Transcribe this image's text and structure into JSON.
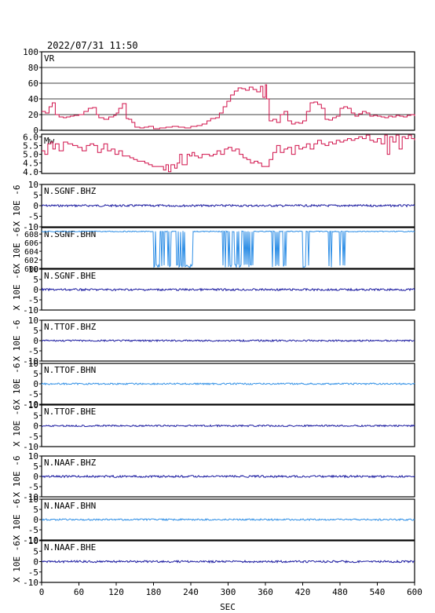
{
  "header": {
    "timestamp": "2022/07/31 11:50"
  },
  "xaxis": {
    "label": "SEC",
    "ticks": [
      0,
      60,
      120,
      180,
      240,
      300,
      360,
      420,
      480,
      540,
      600
    ],
    "range": [
      0,
      600
    ]
  },
  "colors": {
    "frame": "#000000",
    "vr": "#d0104a",
    "mw": "#d0104a",
    "bhz": "#1a1aa0",
    "bhn": "#2f8fe6",
    "bhe": "#1a1aa0",
    "grid": "#000000"
  },
  "chart_data": [
    {
      "type": "line",
      "panel": "VR",
      "label": "VR",
      "ylim": [
        0,
        100
      ],
      "yticks": [
        "0",
        "20",
        "40",
        "60",
        "80",
        "100"
      ],
      "grid": true,
      "series": [
        {
          "x": [
            0,
            6,
            12,
            17,
            22,
            28,
            35,
            40,
            46,
            52,
            60,
            68,
            75,
            82,
            88,
            92,
            100,
            108,
            116,
            120,
            124,
            130,
            136,
            140,
            145,
            150,
            158,
            165,
            172,
            180,
            190,
            200,
            210,
            220,
            230,
            240,
            250,
            258,
            266,
            272,
            280,
            286,
            292,
            298,
            304,
            310,
            316,
            322,
            328,
            334,
            340,
            346,
            352,
            356,
            360,
            362,
            366,
            372,
            378,
            384,
            390,
            396,
            402,
            408,
            414,
            420,
            426,
            432,
            438,
            444,
            450,
            456,
            462,
            468,
            474,
            480,
            486,
            492,
            498,
            504,
            510,
            516,
            522,
            528,
            534,
            540,
            546,
            552,
            558,
            564,
            570,
            576,
            582,
            588,
            594,
            600
          ],
          "y": [
            24,
            22,
            30,
            35,
            20,
            17,
            16,
            17,
            18,
            19,
            20,
            24,
            28,
            29,
            20,
            16,
            14,
            17,
            19,
            22,
            28,
            34,
            15,
            14,
            10,
            4,
            3,
            4,
            5,
            2,
            3,
            4,
            5,
            4,
            3,
            5,
            6,
            8,
            12,
            15,
            16,
            22,
            30,
            37,
            45,
            50,
            54,
            53,
            51,
            55,
            52,
            49,
            56,
            42,
            58,
            40,
            12,
            14,
            10,
            20,
            24,
            12,
            8,
            10,
            9,
            12,
            24,
            35,
            36,
            33,
            28,
            14,
            13,
            16,
            18,
            28,
            30,
            28,
            22,
            18,
            21,
            24,
            22,
            18,
            19,
            18,
            17,
            16,
            18,
            17,
            19,
            18,
            17,
            19,
            20,
            18
          ]
        }
      ]
    },
    {
      "type": "line",
      "panel": "Mw",
      "label": "Mw",
      "ylim": [
        3.9,
        6.15
      ],
      "yticks": [
        "4.0",
        "4.5",
        "5.0",
        "5.5",
        "6.0"
      ],
      "series": [
        {
          "x": [
            0,
            5,
            10,
            15,
            18,
            22,
            28,
            35,
            42,
            50,
            58,
            65,
            72,
            78,
            84,
            90,
            96,
            100,
            106,
            112,
            118,
            124,
            130,
            136,
            142,
            148,
            154,
            160,
            166,
            172,
            178,
            184,
            190,
            196,
            200,
            204,
            208,
            214,
            218,
            222,
            226,
            230,
            234,
            238,
            242,
            246,
            252,
            258,
            264,
            270,
            276,
            282,
            288,
            294,
            300,
            306,
            312,
            318,
            324,
            330,
            336,
            342,
            348,
            354,
            360,
            366,
            372,
            378,
            384,
            390,
            396,
            402,
            408,
            414,
            420,
            426,
            432,
            438,
            444,
            450,
            456,
            462,
            468,
            474,
            480,
            486,
            492,
            498,
            504,
            510,
            516,
            522,
            528,
            534,
            540,
            546,
            552,
            556,
            560,
            565,
            570,
            575,
            580,
            585,
            590,
            595,
            600
          ],
          "y": [
            5.2,
            5.0,
            5.6,
            5.7,
            5.3,
            5.6,
            5.2,
            5.7,
            5.6,
            5.5,
            5.4,
            5.2,
            5.5,
            5.6,
            5.5,
            5.1,
            5.3,
            5.6,
            5.2,
            5.3,
            5.0,
            5.2,
            4.9,
            4.9,
            4.8,
            4.7,
            4.6,
            4.6,
            4.5,
            4.4,
            4.3,
            4.3,
            4.3,
            4.1,
            4.4,
            4.0,
            4.4,
            4.2,
            4.5,
            5.0,
            4.4,
            4.4,
            5.0,
            4.9,
            5.1,
            4.9,
            4.8,
            5.0,
            5.0,
            4.9,
            5.0,
            5.2,
            5.0,
            5.3,
            5.4,
            5.2,
            5.3,
            5.0,
            4.8,
            4.7,
            4.5,
            4.6,
            4.5,
            4.3,
            4.3,
            4.7,
            5.1,
            5.5,
            5.1,
            5.3,
            5.4,
            5.0,
            5.5,
            5.3,
            5.4,
            5.6,
            5.3,
            5.6,
            5.8,
            5.6,
            5.5,
            5.7,
            5.6,
            5.8,
            5.7,
            5.8,
            5.9,
            5.8,
            5.9,
            6.0,
            5.9,
            6.1,
            5.8,
            5.7,
            5.9,
            5.6,
            6.1,
            5.0,
            6.0,
            5.7,
            6.1,
            5.3,
            6.0,
            5.9,
            6.1,
            5.9,
            5.8
          ]
        }
      ]
    },
    {
      "type": "line",
      "panel": "N.SGNF.BHZ",
      "label": "N.SGNF.BHZ",
      "ylim": [
        -10,
        10
      ],
      "yticks": [
        "-10",
        "-5",
        "0",
        "5",
        "10"
      ],
      "ylabel": "X 10E -6",
      "series": [
        {
          "name": "N.SGNF.BHZ",
          "baseline": 0,
          "amplitude": 0.5
        }
      ]
    },
    {
      "type": "line",
      "panel": "N.SGNF.BHN",
      "label": "N.SGNF.BHN",
      "ylim": [
        600,
        609.5
      ],
      "yticks": [
        "600",
        "602",
        "604",
        "606",
        "608"
      ],
      "ylabel": "X 10E -6",
      "series": [
        {
          "name": "N.SGNF.BHN",
          "baseline": 608.6,
          "dropouts": [
            [
              180,
              245
            ],
            [
              290,
              340
            ],
            [
              370,
              395
            ],
            [
              420,
              432
            ],
            [
              462,
              470
            ],
            [
              480,
              488
            ]
          ]
        }
      ]
    },
    {
      "type": "line",
      "panel": "N.SGNF.BHE",
      "label": "N.SGNF.BHE",
      "ylim": [
        -10,
        10
      ],
      "yticks": [
        "-10",
        "-5",
        "0",
        "5",
        "10"
      ],
      "ylabel": "X 10E -6",
      "series": [
        {
          "name": "N.SGNF.BHE",
          "baseline": 0,
          "amplitude": 0.5
        }
      ]
    },
    {
      "type": "line",
      "panel": "N.TTOF.BHZ",
      "label": "N.TTOF.BHZ",
      "ylim": [
        -10,
        10
      ],
      "yticks": [
        "-10",
        "-5",
        "0",
        "5",
        "10"
      ],
      "ylabel": "X 10E -6",
      "series": [
        {
          "name": "N.TTOF.BHZ",
          "baseline": 0,
          "amplitude": 0.4
        }
      ]
    },
    {
      "type": "line",
      "panel": "N.TTOF.BHN",
      "label": "N.TTOF.BHN",
      "ylim": [
        -10,
        10
      ],
      "yticks": [
        "-10",
        "-5",
        "0",
        "5",
        "10"
      ],
      "ylabel": "X 10E -6",
      "series": [
        {
          "name": "N.TTOF.BHN",
          "baseline": 0,
          "amplitude": 0.4
        }
      ]
    },
    {
      "type": "line",
      "panel": "N.TTOF.BHE",
      "label": "N.TTOF.BHE",
      "ylim": [
        -10,
        10
      ],
      "yticks": [
        "-10",
        "-5",
        "0",
        "5",
        "10"
      ],
      "ylabel": "X 10E -6",
      "series": [
        {
          "name": "N.TTOF.BHE",
          "baseline": 0,
          "amplitude": 0.4
        }
      ]
    },
    {
      "type": "line",
      "panel": "N.NAAF.BHZ",
      "label": "N.NAAF.BHZ",
      "ylim": [
        -10,
        10
      ],
      "yticks": [
        "-10",
        "-5",
        "0",
        "5",
        "10"
      ],
      "ylabel": "X 10E -6",
      "series": [
        {
          "name": "N.NAAF.BHZ",
          "baseline": 0,
          "amplitude": 0.5
        }
      ]
    },
    {
      "type": "line",
      "panel": "N.NAAF.BHN",
      "label": "N.NAAF.BHN",
      "ylim": [
        -10,
        10
      ],
      "yticks": [
        "-10",
        "-5",
        "0",
        "5",
        "10"
      ],
      "ylabel": "X 10E -6",
      "series": [
        {
          "name": "N.NAAF.BHN",
          "baseline": 0,
          "amplitude": 0.4
        }
      ]
    },
    {
      "type": "line",
      "panel": "N.NAAF.BHE",
      "label": "N.NAAF.BHE",
      "ylim": [
        -10,
        10
      ],
      "yticks": [
        "-10",
        "-5",
        "0",
        "5",
        "10"
      ],
      "ylabel": "X 10E -6",
      "series": [
        {
          "name": "N.NAAF.BHE",
          "baseline": 0,
          "amplitude": 0.5
        }
      ]
    }
  ]
}
